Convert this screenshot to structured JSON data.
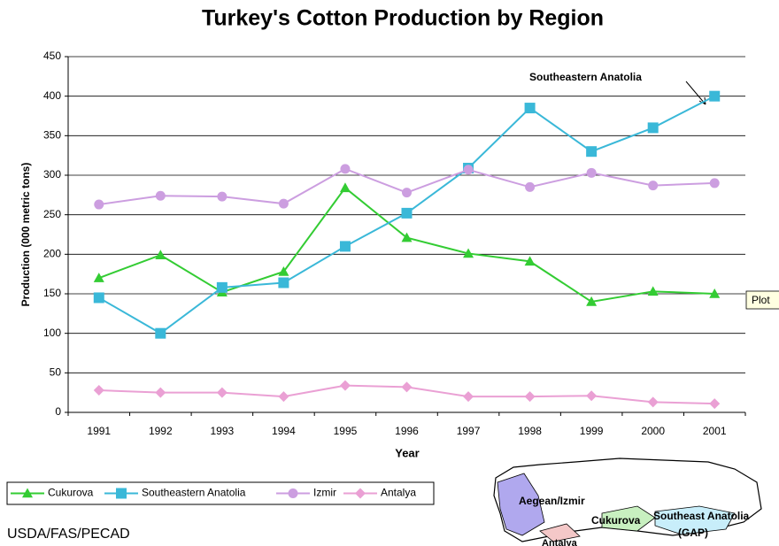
{
  "chart_data": {
    "type": "line",
    "title": "Turkey's Cotton Production by Region",
    "x_label": "Year",
    "y_label": "Production (000 metric tons)",
    "categories": [
      "1991",
      "1992",
      "1993",
      "1994",
      "1995",
      "1996",
      "1997",
      "1998",
      "1999",
      "2000",
      "2001"
    ],
    "series": [
      {
        "name": "Cukurova",
        "color": "#33cc33",
        "marker": "triangle",
        "values": [
          170,
          199,
          152,
          178,
          284,
          221,
          201,
          191,
          140,
          153,
          150
        ]
      },
      {
        "name": "Southeastern Anatolia",
        "color": "#3ab8d8",
        "marker": "square",
        "values": [
          145,
          100,
          158,
          164,
          210,
          252,
          309,
          385,
          330,
          360,
          400
        ]
      },
      {
        "name": "Izmir",
        "color": "#cc9ee0",
        "marker": "circle",
        "values": [
          263,
          274,
          273,
          264,
          308,
          278,
          307,
          285,
          303,
          287,
          290
        ]
      },
      {
        "name": "Antalya",
        "color": "#eaa0d4",
        "marker": "diamond",
        "values": [
          28,
          25,
          25,
          20,
          34,
          32,
          20,
          20,
          21,
          13,
          11
        ]
      }
    ],
    "ylim": [
      0,
      450
    ],
    "yticks": [
      0,
      50,
      100,
      150,
      200,
      250,
      300,
      350,
      400,
      450
    ],
    "grid": true,
    "legend": "bottom-left",
    "annotation": "Southeastern Anatolia",
    "tooltip": "Plot",
    "source": "USDA/FAS/PECAD",
    "map_labels": [
      "Aegean/Izmir",
      "Cukurova",
      "Southeast Anatolia",
      "(GAP)",
      "Antalya"
    ]
  }
}
